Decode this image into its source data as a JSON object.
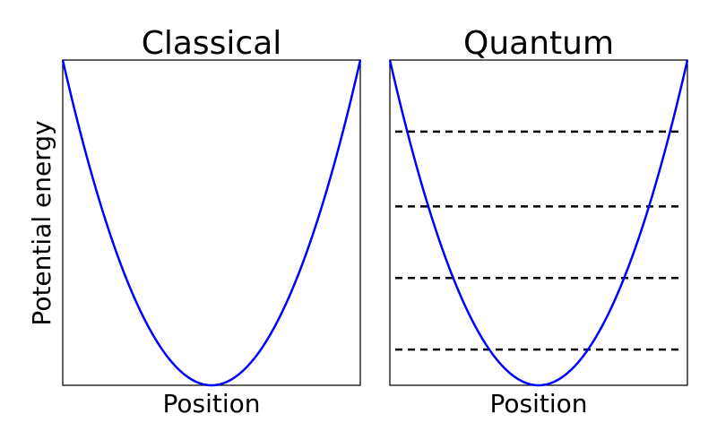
{
  "chart_data": [
    {
      "type": "line",
      "title": "Classical",
      "xlabel": "Position",
      "ylabel": "Potential energy",
      "x_ticks": [],
      "y_ticks": [],
      "xlim": [
        -1,
        1
      ],
      "ylim": [
        0,
        1
      ],
      "series": [
        {
          "function": "y = x^2",
          "color": "#0000ff"
        }
      ]
    },
    {
      "type": "line",
      "title": "Quantum",
      "xlabel": "Position",
      "ylabel": "",
      "x_ticks": [],
      "y_ticks": [],
      "xlim": [
        -1,
        1
      ],
      "ylim": [
        0,
        1
      ],
      "series": [
        {
          "function": "y = x^2",
          "color": "#0000ff"
        }
      ],
      "energy_levels": [
        0.11,
        0.33,
        0.55,
        0.78
      ],
      "energy_level_color": "#000000",
      "energy_level_style": "dashed"
    }
  ]
}
